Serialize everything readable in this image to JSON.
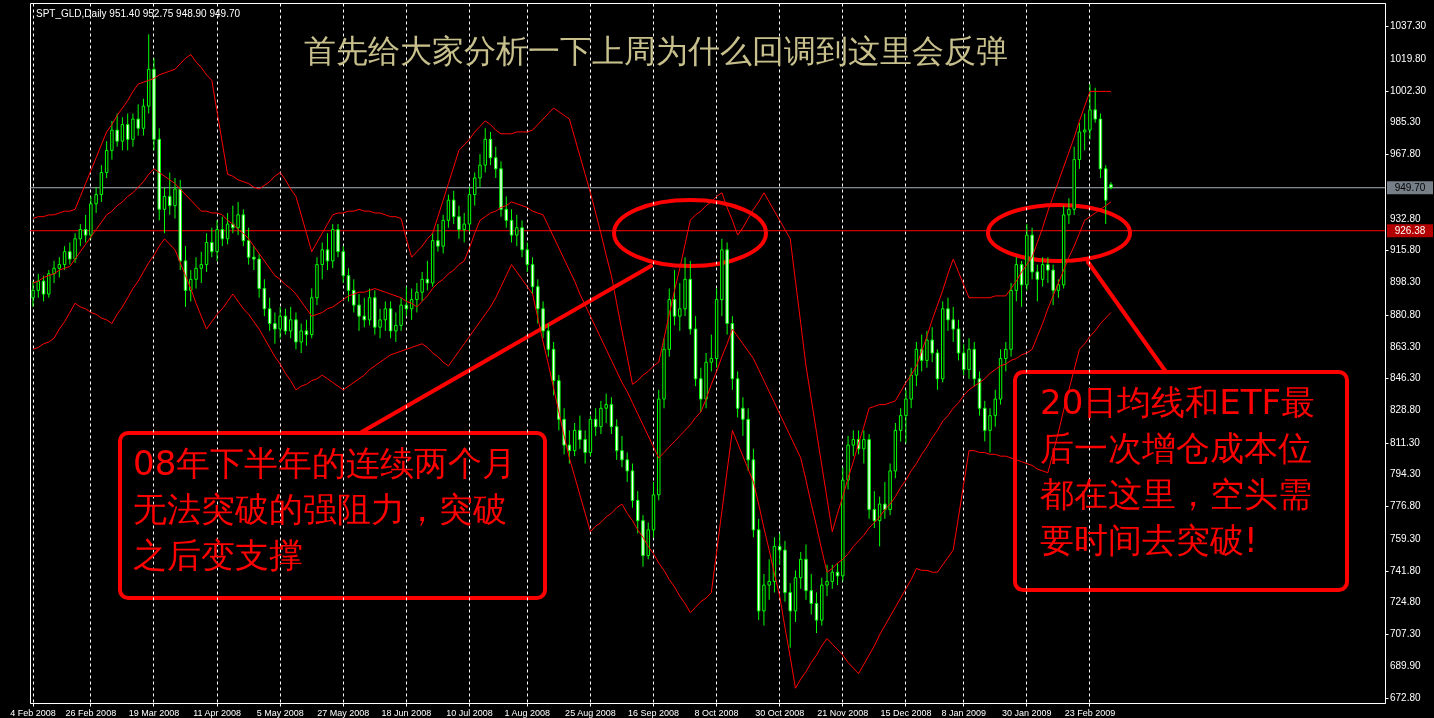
{
  "chart_data": {
    "type": "candlestick",
    "title": "首先给大家分析一下上周为什么回调到这里会反弹",
    "subtitle": "SPT_GLD,Daily  951.40 952.75 948.90 949.70",
    "annotations": [
      "08年下半年的连续两个月无法突破的强阻力，突破之后变支撑",
      "20日均线和ETF最后一次增仓成本位都在这里，空头需要时间去突破!"
    ],
    "ylim": [
      670,
      1050
    ],
    "grid": "x",
    "yticks": [
      {
        "value": 672.8,
        "label": "672.80"
      },
      {
        "value": 689.9,
        "label": "689.90"
      },
      {
        "value": 707.3,
        "label": "707.30"
      },
      {
        "value": 724.8,
        "label": "724.80"
      },
      {
        "value": 741.8,
        "label": "741.80"
      },
      {
        "value": 759.3,
        "label": "759.30"
      },
      {
        "value": 776.8,
        "label": "776.80"
      },
      {
        "value": 794.3,
        "label": "794.30"
      },
      {
        "value": 811.3,
        "label": "811.30"
      },
      {
        "value": 828.8,
        "label": "828.80"
      },
      {
        "value": 846.3,
        "label": "846.30"
      },
      {
        "value": 863.3,
        "label": "863.30"
      },
      {
        "value": 880.8,
        "label": "880.80"
      },
      {
        "value": 898.3,
        "label": "898.30"
      },
      {
        "value": 915.8,
        "label": "915.80"
      },
      {
        "value": 932.8,
        "label": "932.80"
      },
      {
        "value": 967.8,
        "label": "967.80"
      },
      {
        "value": 985.3,
        "label": "985.30"
      },
      {
        "value": 1002.3,
        "label": "1002.30"
      },
      {
        "value": 1019.8,
        "label": "1019.80"
      },
      {
        "value": 1037.3,
        "label": "1037.30"
      }
    ],
    "ref_lines": [
      {
        "axis": "y",
        "value": 949.7,
        "label": "949.70",
        "color": "#a8b4c0"
      },
      {
        "axis": "y",
        "value": 926.38,
        "label": "926.38",
        "color": "#ff0000"
      }
    ],
    "categories": [
      "4 Feb 2008",
      null,
      null,
      null,
      null,
      null,
      null,
      null,
      null,
      null,
      null,
      "26 Feb 2008",
      null,
      null,
      null,
      null,
      null,
      null,
      null,
      null,
      null,
      null,
      null,
      "19 Mar 2008",
      null,
      null,
      null,
      null,
      null,
      null,
      null,
      null,
      null,
      null,
      null,
      "11 Apr 2008",
      null,
      null,
      null,
      null,
      null,
      null,
      null,
      null,
      null,
      null,
      null,
      "5 May 2008",
      null,
      null,
      null,
      null,
      null,
      null,
      null,
      null,
      null,
      null,
      null,
      "27 May 2008",
      null,
      null,
      null,
      null,
      null,
      null,
      null,
      null,
      null,
      null,
      null,
      "18 Jun 2008",
      null,
      null,
      null,
      null,
      null,
      null,
      null,
      null,
      null,
      null,
      null,
      "10 Jul 2008",
      null,
      null,
      null,
      null,
      null,
      null,
      null,
      null,
      null,
      null,
      "1 Aug 2008",
      null,
      null,
      null,
      null,
      null,
      null,
      null,
      null,
      null,
      null,
      null,
      "25 Aug 2008",
      null,
      null,
      null,
      null,
      null,
      null,
      null,
      null,
      null,
      null,
      null,
      "16 Sep 2008",
      null,
      null,
      null,
      null,
      null,
      null,
      null,
      null,
      null,
      null,
      null,
      "8 Oct 2008",
      null,
      null,
      null,
      null,
      null,
      null,
      null,
      null,
      null,
      null,
      null,
      "30 Oct 2008",
      null,
      null,
      null,
      null,
      null,
      null,
      null,
      null,
      null,
      null,
      null,
      "21 Nov 2008",
      null,
      null,
      null,
      null,
      null,
      null,
      null,
      null,
      null,
      null,
      null,
      "15 Dec 2008",
      null,
      null,
      null,
      null,
      null,
      null,
      null,
      null,
      null,
      null,
      "8 Jan 2009",
      null,
      null,
      null,
      null,
      null,
      null,
      null,
      null,
      null,
      null,
      null,
      "30 Jan 2009",
      null,
      null,
      null,
      null,
      null,
      null,
      null,
      null,
      null,
      null,
      null,
      "23 Feb 2009",
      null,
      null,
      null,
      null
    ],
    "series": [
      {
        "color": "#00ff00",
        "ohlc": [
          [
            890,
            899,
            885,
            894
          ],
          [
            894,
            903,
            890,
            899
          ],
          [
            899,
            902,
            888,
            892
          ],
          [
            892,
            905,
            890,
            903
          ],
          [
            903,
            910,
            898,
            906
          ],
          [
            906,
            912,
            901,
            908
          ],
          [
            908,
            918,
            905,
            915
          ],
          [
            915,
            920,
            908,
            911
          ],
          [
            911,
            925,
            909,
            922
          ],
          [
            922,
            930,
            918,
            927
          ],
          [
            927,
            935,
            920,
            924
          ],
          [
            924,
            945,
            922,
            941
          ],
          [
            941,
            950,
            936,
            946
          ],
          [
            946,
            962,
            942,
            958
          ],
          [
            958,
            975,
            955,
            970
          ],
          [
            970,
            986,
            965,
            981
          ],
          [
            981,
            990,
            972,
            975
          ],
          [
            975,
            988,
            970,
            984
          ],
          [
            984,
            990,
            970,
            976
          ],
          [
            976,
            990,
            972,
            987
          ],
          [
            987,
            995,
            978,
            982
          ],
          [
            982,
            998,
            978,
            994
          ],
          [
            994,
            1033,
            990,
            1014
          ],
          [
            1014,
            1020,
            970,
            976
          ],
          [
            976,
            982,
            932,
            938
          ],
          [
            938,
            950,
            925,
            945
          ],
          [
            945,
            958,
            935,
            940
          ],
          [
            940,
            955,
            933,
            949
          ],
          [
            949,
            954,
            905,
            910
          ],
          [
            910,
            918,
            885,
            894
          ],
          [
            894,
            905,
            888,
            900
          ],
          [
            900,
            912,
            895,
            906
          ],
          [
            906,
            915,
            898,
            908
          ],
          [
            908,
            925,
            904,
            920
          ],
          [
            920,
            928,
            912,
            915
          ],
          [
            915,
            932,
            910,
            927
          ],
          [
            927,
            934,
            918,
            922
          ],
          [
            922,
            936,
            919,
            930
          ],
          [
            930,
            940,
            925,
            928
          ],
          [
            928,
            942,
            924,
            935
          ],
          [
            935,
            938,
            918,
            921
          ],
          [
            921,
            928,
            908,
            912
          ],
          [
            912,
            918,
            905,
            911
          ],
          [
            911,
            914,
            890,
            895
          ],
          [
            895,
            900,
            880,
            884
          ],
          [
            884,
            890,
            872,
            876
          ],
          [
            876,
            882,
            865,
            873
          ],
          [
            873,
            885,
            868,
            880
          ],
          [
            880,
            884,
            870,
            872
          ],
          [
            872,
            885,
            868,
            878
          ],
          [
            878,
            882,
            862,
            866
          ],
          [
            866,
            876,
            860,
            872
          ],
          [
            872,
            878,
            864,
            870
          ],
          [
            870,
            895,
            868,
            890
          ],
          [
            890,
            912,
            886,
            908
          ],
          [
            908,
            920,
            900,
            916
          ],
          [
            916,
            925,
            905,
            910
          ],
          [
            910,
            930,
            906,
            927
          ],
          [
            927,
            930,
            912,
            915
          ],
          [
            915,
            918,
            898,
            902
          ],
          [
            902,
            906,
            888,
            894
          ],
          [
            894,
            900,
            882,
            886
          ],
          [
            886,
            892,
            872,
            880
          ],
          [
            880,
            890,
            874,
            878
          ],
          [
            878,
            895,
            875,
            890
          ],
          [
            890,
            894,
            870,
            874
          ],
          [
            874,
            884,
            868,
            878
          ],
          [
            878,
            888,
            872,
            884
          ],
          [
            884,
            888,
            868,
            872
          ],
          [
            872,
            882,
            866,
            875
          ],
          [
            875,
            890,
            872,
            886
          ],
          [
            886,
            896,
            880,
            884
          ],
          [
            884,
            895,
            878,
            889
          ],
          [
            889,
            898,
            882,
            893
          ],
          [
            893,
            904,
            888,
            900
          ],
          [
            900,
            910,
            894,
            898
          ],
          [
            898,
            925,
            896,
            921
          ],
          [
            921,
            930,
            915,
            918
          ],
          [
            918,
            935,
            914,
            932
          ],
          [
            932,
            946,
            928,
            943
          ],
          [
            943,
            948,
            930,
            934
          ],
          [
            934,
            940,
            922,
            927
          ],
          [
            927,
            936,
            920,
            930
          ],
          [
            930,
            950,
            926,
            946
          ],
          [
            946,
            958,
            940,
            955
          ],
          [
            955,
            968,
            950,
            962
          ],
          [
            962,
            982,
            958,
            976
          ],
          [
            976,
            980,
            962,
            966
          ],
          [
            966,
            972,
            955,
            960
          ],
          [
            960,
            964,
            934,
            938
          ],
          [
            938,
            945,
            928,
            932
          ],
          [
            932,
            938,
            920,
            924
          ],
          [
            924,
            935,
            918,
            928
          ],
          [
            928,
            932,
            912,
            916
          ],
          [
            916,
            920,
            904,
            908
          ],
          [
            908,
            912,
            892,
            896
          ],
          [
            896,
            900,
            876,
            884
          ],
          [
            884,
            888,
            868,
            872
          ],
          [
            872,
            876,
            858,
            862
          ],
          [
            862,
            866,
            837,
            845
          ],
          [
            845,
            848,
            818,
            824
          ],
          [
            824,
            830,
            805,
            810
          ],
          [
            810,
            818,
            800,
            807
          ],
          [
            807,
            822,
            804,
            818
          ],
          [
            818,
            826,
            808,
            813
          ],
          [
            813,
            818,
            800,
            806
          ],
          [
            806,
            826,
            804,
            824
          ],
          [
            824,
            830,
            815,
            820
          ],
          [
            820,
            834,
            816,
            830
          ],
          [
            830,
            838,
            822,
            832
          ],
          [
            832,
            836,
            816,
            820
          ],
          [
            820,
            824,
            802,
            807
          ],
          [
            807,
            815,
            798,
            802
          ],
          [
            802,
            806,
            790,
            796
          ],
          [
            796,
            800,
            776,
            780
          ],
          [
            780,
            785,
            762,
            769
          ],
          [
            769,
            772,
            744,
            750
          ],
          [
            750,
            768,
            748,
            764
          ],
          [
            764,
            790,
            760,
            783
          ],
          [
            783,
            840,
            780,
            835
          ],
          [
            835,
            868,
            830,
            862
          ],
          [
            862,
            895,
            858,
            889
          ],
          [
            889,
            905,
            875,
            880
          ],
          [
            880,
            898,
            872,
            884
          ],
          [
            884,
            912,
            880,
            900
          ],
          [
            900,
            910,
            870,
            873
          ],
          [
            873,
            880,
            842,
            846
          ],
          [
            846,
            852,
            828,
            835
          ],
          [
            835,
            860,
            830,
            855
          ],
          [
            855,
            870,
            850,
            857
          ],
          [
            857,
            895,
            852,
            889
          ],
          [
            889,
            922,
            880,
            916
          ],
          [
            916,
            920,
            870,
            876
          ],
          [
            876,
            880,
            840,
            846
          ],
          [
            846,
            850,
            825,
            830
          ],
          [
            830,
            836,
            815,
            824
          ],
          [
            824,
            830,
            796,
            802
          ],
          [
            802,
            808,
            760,
            764
          ],
          [
            764,
            770,
            715,
            720
          ],
          [
            720,
            740,
            712,
            734
          ],
          [
            734,
            748,
            726,
            736
          ],
          [
            736,
            760,
            730,
            755
          ],
          [
            755,
            762,
            745,
            753
          ],
          [
            753,
            758,
            725,
            730
          ],
          [
            730,
            735,
            700,
            720
          ],
          [
            720,
            742,
            714,
            738
          ],
          [
            738,
            752,
            732,
            748
          ],
          [
            748,
            756,
            726,
            731
          ],
          [
            731,
            740,
            718,
            724
          ],
          [
            724,
            730,
            708,
            715
          ],
          [
            715,
            738,
            712,
            734
          ],
          [
            734,
            745,
            728,
            736
          ],
          [
            736,
            745,
            732,
            741
          ],
          [
            741,
            746,
            734,
            739
          ],
          [
            739,
            798,
            736,
            791
          ],
          [
            791,
            815,
            786,
            810
          ],
          [
            810,
            818,
            804,
            813
          ],
          [
            813,
            818,
            805,
            808
          ],
          [
            808,
            818,
            800,
            813
          ],
          [
            813,
            816,
            770,
            775
          ],
          [
            775,
            785,
            765,
            769
          ],
          [
            769,
            782,
            755,
            778
          ],
          [
            778,
            790,
            770,
            775
          ],
          [
            775,
            800,
            772,
            796
          ],
          [
            796,
            822,
            792,
            818
          ],
          [
            818,
            830,
            812,
            826
          ],
          [
            826,
            840,
            811,
            835
          ],
          [
            835,
            852,
            830,
            848
          ],
          [
            848,
            866,
            842,
            862
          ],
          [
            862,
            870,
            850,
            856
          ],
          [
            856,
            872,
            852,
            867
          ],
          [
            867,
            874,
            855,
            860
          ],
          [
            860,
            862,
            840,
            846
          ],
          [
            846,
            888,
            844,
            884
          ],
          [
            884,
            890,
            872,
            878
          ],
          [
            878,
            885,
            866,
            873
          ],
          [
            873,
            878,
            856,
            860
          ],
          [
            860,
            865,
            848,
            851
          ],
          [
            851,
            868,
            846,
            862
          ],
          [
            862,
            866,
            842,
            846
          ],
          [
            846,
            850,
            826,
            830
          ],
          [
            830,
            834,
            812,
            818
          ],
          [
            818,
            830,
            806,
            826
          ],
          [
            826,
            840,
            820,
            835
          ],
          [
            835,
            862,
            832,
            857
          ],
          [
            857,
            866,
            850,
            862
          ],
          [
            862,
            898,
            858,
            894
          ],
          [
            894,
            912,
            888,
            908
          ],
          [
            908,
            910,
            885,
            897
          ],
          [
            897,
            930,
            894,
            924
          ],
          [
            924,
            928,
            900,
            904
          ],
          [
            904,
            908,
            888,
            900
          ],
          [
            900,
            912,
            896,
            908
          ],
          [
            908,
            912,
            898,
            905
          ],
          [
            905,
            908,
            886,
            894
          ],
          [
            894,
            900,
            890,
            897
          ],
          [
            897,
            940,
            895,
            935
          ],
          [
            935,
            944,
            930,
            938
          ],
          [
            938,
            972,
            935,
            965
          ],
          [
            965,
            985,
            960,
            980
          ],
          [
            980,
            990,
            970,
            981
          ],
          [
            981,
            1006,
            976,
            992
          ],
          [
            992,
            1004,
            985,
            987
          ],
          [
            987,
            990,
            955,
            960
          ],
          [
            960,
            962,
            930,
            943
          ],
          [
            951.4,
            952.75,
            948.9,
            949.7
          ]
        ]
      },
      {
        "type": "line",
        "color": "#ff0000",
        "values": [
          933,
          934,
          934,
          935,
          935,
          936,
          937,
          937,
          938,
          945,
          952,
          959,
          966,
          973,
          980,
          984,
          989,
          993,
          997,
          1002,
          1006,
          1007,
          1008,
          1009,
          1011,
          1012,
          1013,
          1014,
          1017,
          1020,
          1022,
          1018,
          1015,
          1011,
          1008,
          991,
          974,
          957,
          956,
          954,
          953,
          952,
          950,
          949,
          951,
          953,
          956,
          958,
          954,
          949,
          945,
          935,
          925,
          915,
          920,
          925,
          930,
          935,
          936,
          936,
          937,
          937,
          938,
          937,
          937,
          936,
          936,
          935,
          934,
          934,
          933,
          922,
          912,
          915,
          918,
          922,
          925,
          934,
          943,
          952,
          961,
          970,
          973,
          976,
          980,
          983,
          986,
          984,
          981,
          979,
          979,
          979,
          980,
          980,
          980,
          981,
          984,
          987,
          990,
          993,
          991,
          989,
          987,
          977,
          967,
          957,
          947,
          936,
          925,
          913,
          902,
          887,
          872,
          858,
          843,
          845,
          848,
          850,
          853,
          855,
          868,
          881,
          894,
          906,
          919,
          932,
          935,
          937,
          940,
          942,
          945,
          947,
          939,
          932,
          924,
          928,
          933,
          938,
          942,
          947,
          942,
          937,
          932,
          927,
          922,
          899,
          876,
          853,
          835,
          817,
          799,
          781,
          763,
          773,
          782,
          792,
          801,
          811,
          820,
          830,
          831,
          832,
          832,
          833,
          834,
          839,
          844,
          848,
          853,
          861,
          869,
          878,
          886,
          894,
          903,
          911,
          904,
          897,
          890,
          890,
          890,
          890,
          890,
          891,
          891,
          891,
          895,
          899,
          904,
          908,
          912,
          920,
          928,
          937,
          945,
          953,
          961,
          969,
          977,
          986,
          994,
          1002,
          1002,
          1002,
          1002,
          1002
        ]
      },
      {
        "type": "line",
        "color": "#ff0000",
        "values": [
          898,
          899,
          901,
          902,
          903,
          905,
          906,
          907,
          911,
          915,
          919,
          923,
          927,
          931,
          935,
          937,
          940,
          942,
          945,
          947,
          950,
          953,
          957,
          960,
          958,
          956,
          954,
          952,
          949,
          946,
          943,
          940,
          937,
          937,
          936,
          936,
          935,
          932,
          930,
          927,
          925,
          922,
          918,
          914,
          910,
          906,
          902,
          900,
          897,
          895,
          892,
          888,
          884,
          880,
          881,
          882,
          884,
          885,
          887,
          889,
          891,
          892,
          893,
          893,
          894,
          895,
          894,
          893,
          892,
          891,
          890,
          888,
          887,
          885,
          888,
          891,
          895,
          898,
          900,
          903,
          905,
          908,
          910,
          917,
          925,
          932,
          934,
          936,
          937,
          939,
          940,
          942,
          941,
          940,
          939,
          937,
          936,
          935,
          929,
          923,
          917,
          911,
          905,
          899,
          892,
          886,
          880,
          874,
          868,
          862,
          856,
          850,
          844,
          839,
          833,
          827,
          821,
          815,
          809,
          803,
          806,
          809,
          812,
          815,
          818,
          821,
          825,
          828,
          835,
          843,
          850,
          858,
          865,
          873,
          869,
          865,
          861,
          857,
          851,
          845,
          839,
          833,
          827,
          821,
          815,
          809,
          803,
          791,
          778,
          766,
          753,
          741,
          743,
          746,
          748,
          751,
          755,
          758,
          761,
          765,
          768,
          771,
          775,
          778,
          782,
          787,
          791,
          796,
          800,
          805,
          809,
          814,
          818,
          823,
          826,
          830,
          833,
          837,
          840,
          842,
          844,
          846,
          849,
          851,
          853,
          854,
          856,
          857,
          859,
          860,
          862,
          869,
          876,
          884,
          891,
          898,
          905,
          912,
          918,
          925,
          932,
          934,
          936,
          938,
          940,
          942
        ]
      },
      {
        "type": "line",
        "color": "#ff0000",
        "values": [
          862,
          863,
          865,
          866,
          868,
          873,
          877,
          882,
          887,
          885,
          884,
          882,
          881,
          879,
          878,
          876,
          881,
          885,
          890,
          895,
          899,
          904,
          909,
          913,
          918,
          922,
          919,
          916,
          909,
          902,
          895,
          887,
          880,
          873,
          877,
          881,
          884,
          888,
          892,
          888,
          884,
          881,
          877,
          873,
          868,
          863,
          858,
          854,
          849,
          845,
          840,
          842,
          843,
          845,
          846,
          848,
          846,
          844,
          842,
          840,
          842,
          844,
          846,
          848,
          851,
          853,
          855,
          857,
          859,
          860,
          861,
          862,
          863,
          864,
          865,
          863,
          860,
          858,
          855,
          853,
          857,
          861,
          865,
          869,
          873,
          877,
          881,
          885,
          890,
          896,
          902,
          908,
          904,
          900,
          896,
          892,
          879,
          866,
          854,
          841,
          828,
          815,
          803,
          793,
          783,
          773,
          763,
          766,
          768,
          771,
          773,
          776,
          778,
          773,
          769,
          764,
          760,
          755,
          751,
          746,
          742,
          737,
          733,
          728,
          724,
          719,
          722,
          725,
          727,
          730,
          752,
          774,
          796,
          818,
          811,
          804,
          797,
          790,
          778,
          765,
          753,
          740,
          728,
          711,
          695,
          678,
          683,
          687,
          692,
          696,
          701,
          705,
          702,
          699,
          696,
          692,
          689,
          686,
          691,
          696,
          701,
          707,
          712,
          717,
          722,
          727,
          732,
          737,
          743,
          742,
          742,
          741,
          741,
          745,
          749,
          753,
          771,
          789,
          807,
          807,
          806,
          806,
          805,
          805,
          804,
          804,
          803,
          802,
          801,
          800,
          799,
          797,
          796,
          795,
          806,
          817,
          829,
          840,
          851,
          862,
          865,
          869,
          872,
          876,
          879,
          882
        ]
      }
    ]
  }
}
